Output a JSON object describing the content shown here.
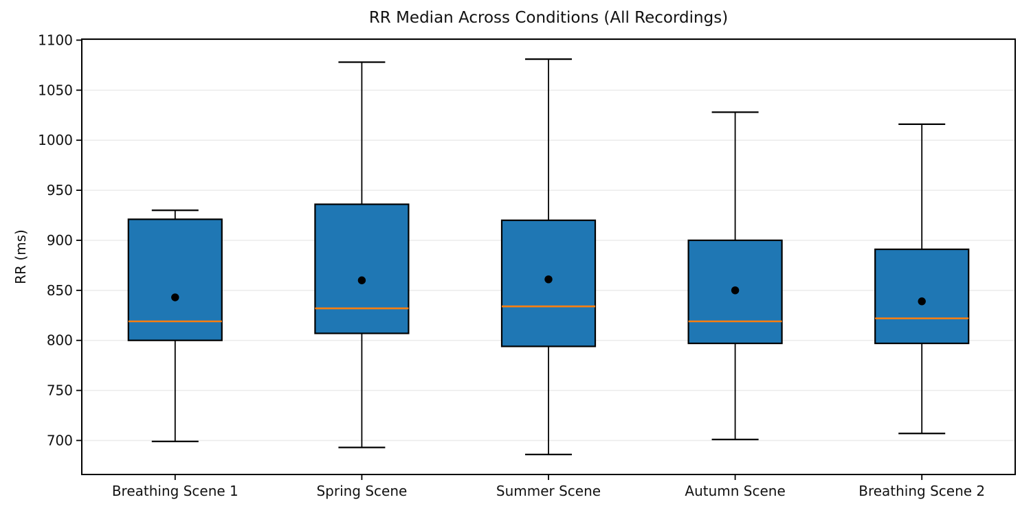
{
  "chart_data": {
    "type": "boxplot",
    "title": "RR Median Across Conditions (All Recordings)",
    "ylabel": "RR (ms)",
    "xlabel": "",
    "categories": [
      "Breathing Scene 1",
      "Spring Scene",
      "Summer Scene",
      "Autumn Scene",
      "Breathing Scene 2"
    ],
    "y_ticks": [
      700,
      750,
      800,
      850,
      900,
      950,
      1000,
      1050,
      1100
    ],
    "ylim": [
      666,
      1101
    ],
    "grid": "horizontal-only",
    "legend": "none",
    "series": [
      {
        "name": "Breathing Scene 1",
        "whisker_low": 699,
        "q1": 800,
        "median": 819,
        "mean": 843,
        "q3": 921,
        "whisker_high": 930
      },
      {
        "name": "Spring Scene",
        "whisker_low": 693,
        "q1": 807,
        "median": 832,
        "mean": 860,
        "q3": 936,
        "whisker_high": 1078
      },
      {
        "name": "Summer Scene",
        "whisker_low": 686,
        "q1": 794,
        "median": 834,
        "mean": 861,
        "q3": 920,
        "whisker_high": 1081
      },
      {
        "name": "Autumn Scene",
        "whisker_low": 701,
        "q1": 797,
        "median": 819,
        "mean": 850,
        "q3": 900,
        "whisker_high": 1028
      },
      {
        "name": "Breathing Scene 2",
        "whisker_low": 707,
        "q1": 797,
        "median": 822,
        "mean": 839,
        "q3": 891,
        "whisker_high": 1016
      }
    ],
    "colors": {
      "box_fill": "#1f77b4",
      "median_line": "#ff7f0e",
      "mean_marker": "#000000",
      "axis": "#000000",
      "grid": "#ebebeb",
      "background": "#ffffff"
    }
  }
}
